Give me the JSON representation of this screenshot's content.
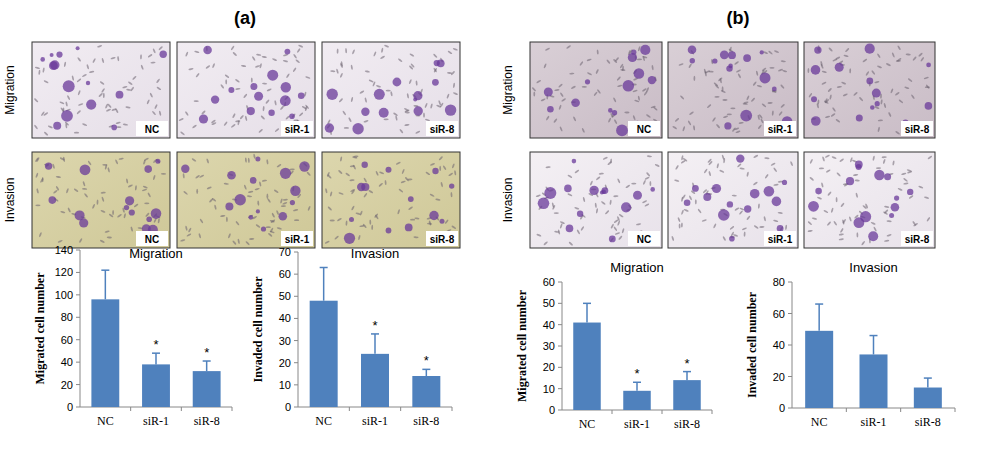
{
  "panels": [
    {
      "label": "(a)",
      "rows": [
        "Migration",
        "Invasion"
      ],
      "image_labels": [
        "NC",
        "siR-1",
        "siR-8"
      ]
    },
    {
      "label": "(b)",
      "rows": [
        "Migration",
        "Invasion"
      ],
      "image_labels": [
        "NC",
        "siR-1",
        "siR-8"
      ]
    }
  ],
  "chart_data": [
    {
      "type": "bar",
      "title": "Migration",
      "y_label": "Migrated cell number",
      "categories": [
        "NC",
        "siR-1",
        "siR-8"
      ],
      "values": [
        96,
        38,
        32
      ],
      "errors": [
        26,
        10,
        9
      ],
      "annotations": [
        null,
        "*",
        "*"
      ],
      "color": "#4f81bd",
      "ylim": [
        0,
        140
      ],
      "yticks": [
        0,
        20,
        40,
        60,
        80,
        100,
        120,
        140
      ]
    },
    {
      "type": "bar",
      "title": "Invasion",
      "y_label": "Invaded cell number",
      "categories": [
        "NC",
        "siR-1",
        "siR-8"
      ],
      "values": [
        48,
        24,
        14
      ],
      "errors": [
        15,
        9,
        3
      ],
      "annotations": [
        null,
        "*",
        "*"
      ],
      "color": "#4f81bd",
      "ylim": [
        0,
        70
      ],
      "yticks": [
        0,
        10,
        20,
        30,
        40,
        50,
        60,
        70
      ]
    },
    {
      "type": "bar",
      "title": "Migration",
      "y_label": "Migrated cell number",
      "categories": [
        "NC",
        "siR-1",
        "siR-8"
      ],
      "values": [
        41,
        9,
        14
      ],
      "errors": [
        9,
        4,
        4
      ],
      "annotations": [
        null,
        "*",
        "*"
      ],
      "color": "#4f81bd",
      "ylim": [
        0,
        60
      ],
      "yticks": [
        0,
        10,
        20,
        30,
        40,
        50,
        60
      ]
    },
    {
      "type": "bar",
      "title": "Invasion",
      "y_label": "Invaded cell number",
      "categories": [
        "NC",
        "siR-1",
        "siR-8"
      ],
      "values": [
        49,
        34,
        13
      ],
      "errors": [
        17,
        12,
        6
      ],
      "annotations": [
        null,
        null,
        null
      ],
      "color": "#4f81bd",
      "ylim": [
        0,
        80
      ],
      "yticks": [
        0,
        20,
        40,
        60,
        80
      ]
    }
  ]
}
